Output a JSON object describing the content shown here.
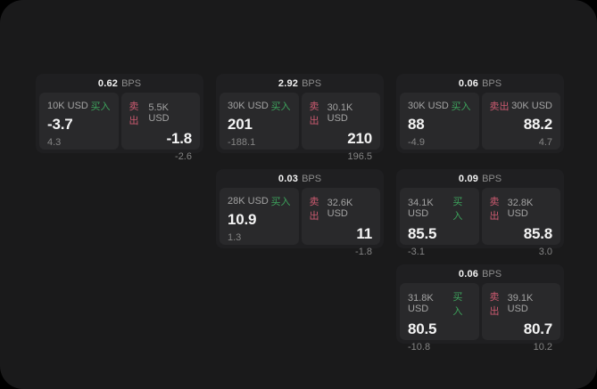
{
  "labels": {
    "bps_unit": "BPS",
    "buy": "买入",
    "sell": "卖出"
  },
  "colors": {
    "page_background": "#1a1a1b",
    "card_background": "#1f1f21",
    "panel_background": "#29292b",
    "buy_green": "#3da35c",
    "sell_red": "#cc5a70"
  },
  "cards": [
    {
      "bps": "0.62",
      "buy": {
        "amount": "10K USD",
        "price": "-3.7",
        "sub": "4.3"
      },
      "sell": {
        "amount": "5.5K USD",
        "price": "-1.8",
        "sub": "-2.6"
      }
    },
    {
      "bps": "2.92",
      "buy": {
        "amount": "30K USD",
        "price": "201",
        "sub": "-188.1"
      },
      "sell": {
        "amount": "30.1K USD",
        "price": "210",
        "sub": "196.5"
      }
    },
    {
      "bps": "0.06",
      "buy": {
        "amount": "30K USD",
        "price": "88",
        "sub": "-4.9"
      },
      "sell": {
        "amount": "30K USD",
        "price": "88.2",
        "sub": "4.7"
      }
    },
    {
      "bps": "0.03",
      "buy": {
        "amount": "28K USD",
        "price": "10.9",
        "sub": "1.3"
      },
      "sell": {
        "amount": "32.6K USD",
        "price": "11",
        "sub": "-1.8"
      }
    },
    {
      "bps": "0.09",
      "buy": {
        "amount": "34.1K USD",
        "price": "85.5",
        "sub": "-3.1"
      },
      "sell": {
        "amount": "32.8K USD",
        "price": "85.8",
        "sub": "3.0"
      }
    },
    {
      "bps": "0.06",
      "buy": {
        "amount": "31.8K USD",
        "price": "80.5",
        "sub": "-10.8"
      },
      "sell": {
        "amount": "39.1K USD",
        "price": "80.7",
        "sub": "10.2"
      }
    }
  ]
}
